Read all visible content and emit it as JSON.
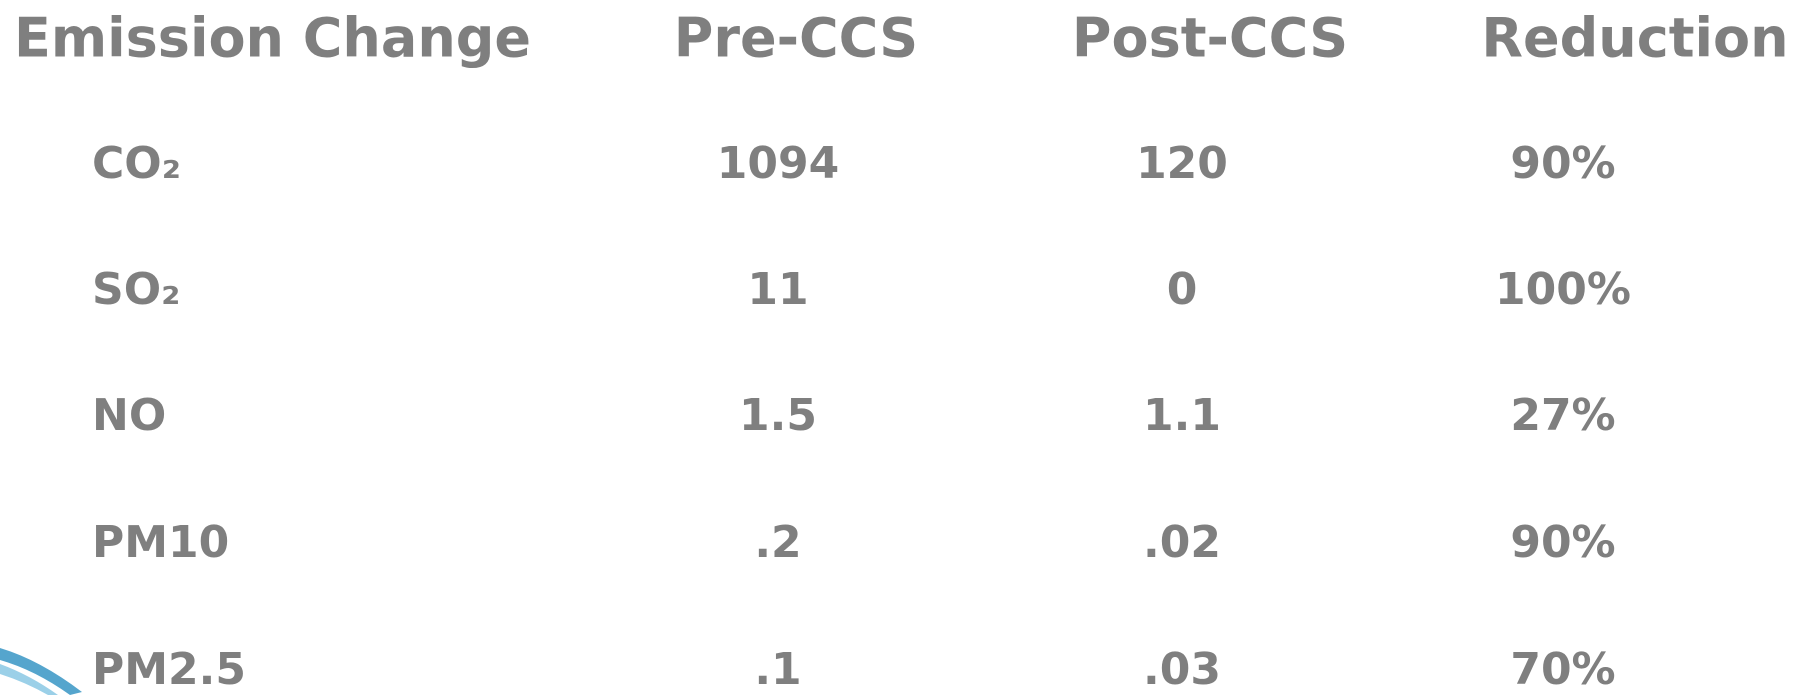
{
  "table": {
    "headers": [
      "Emission Change",
      "Pre-CCS",
      "Post-CCS",
      "Reduction"
    ],
    "rows": [
      [
        "CO₂",
        "1094",
        "120",
        "90%"
      ],
      [
        "SO₂",
        "11",
        "0",
        "100%"
      ],
      [
        "NO",
        "1.5",
        "1.1",
        "27%"
      ],
      [
        "PM10",
        ".2",
        ".02",
        "90%"
      ],
      [
        "PM2.5",
        ".1",
        ".03",
        "70%"
      ]
    ]
  }
}
